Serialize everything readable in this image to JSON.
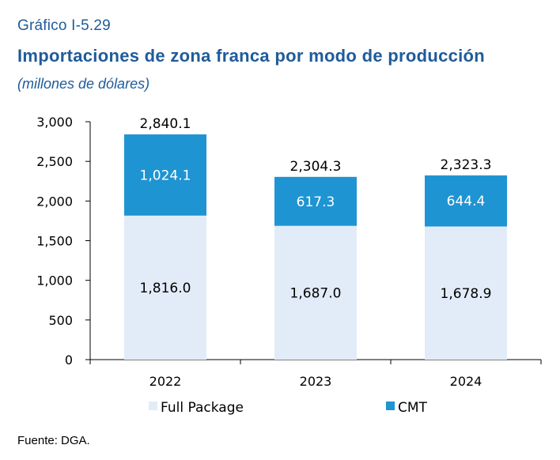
{
  "header": {
    "figure_label": "Gráfico I-5.29",
    "title": "Importaciones de zona franca por modo de producción",
    "subtitle": "(millones de dólares)"
  },
  "footer": {
    "source": "Fuente: DGA."
  },
  "colors": {
    "full_package": "#e2ecf8",
    "cmt": "#1f94d2",
    "axis": "#000000",
    "title": "#1f5b9a"
  },
  "chart_data": {
    "type": "bar",
    "stacked": true,
    "categories": [
      "2022",
      "2023",
      "2024"
    ],
    "series": [
      {
        "name": "Full Package",
        "values": [
          1816.0,
          1687.0,
          1678.9
        ]
      },
      {
        "name": "CMT",
        "values": [
          1024.1,
          617.3,
          644.4
        ]
      }
    ],
    "totals": [
      2840.1,
      2304.3,
      2323.3
    ],
    "value_labels": {
      "full_package": [
        "1,816.0",
        "1,687.0",
        "1,678.9"
      ],
      "cmt": [
        "1,024.1",
        "617.3",
        "644.4"
      ],
      "totals": [
        "2,840.1",
        "2,304.3",
        "2,323.3"
      ]
    },
    "yticks": [
      0,
      500,
      1000,
      1500,
      2000,
      2500,
      3000
    ],
    "ytick_labels": [
      "0",
      "500",
      "1,000",
      "1,500",
      "2,000",
      "2,500",
      "3,000"
    ],
    "ylim": [
      0,
      3000
    ],
    "grid": false,
    "legend_position": "bottom"
  }
}
